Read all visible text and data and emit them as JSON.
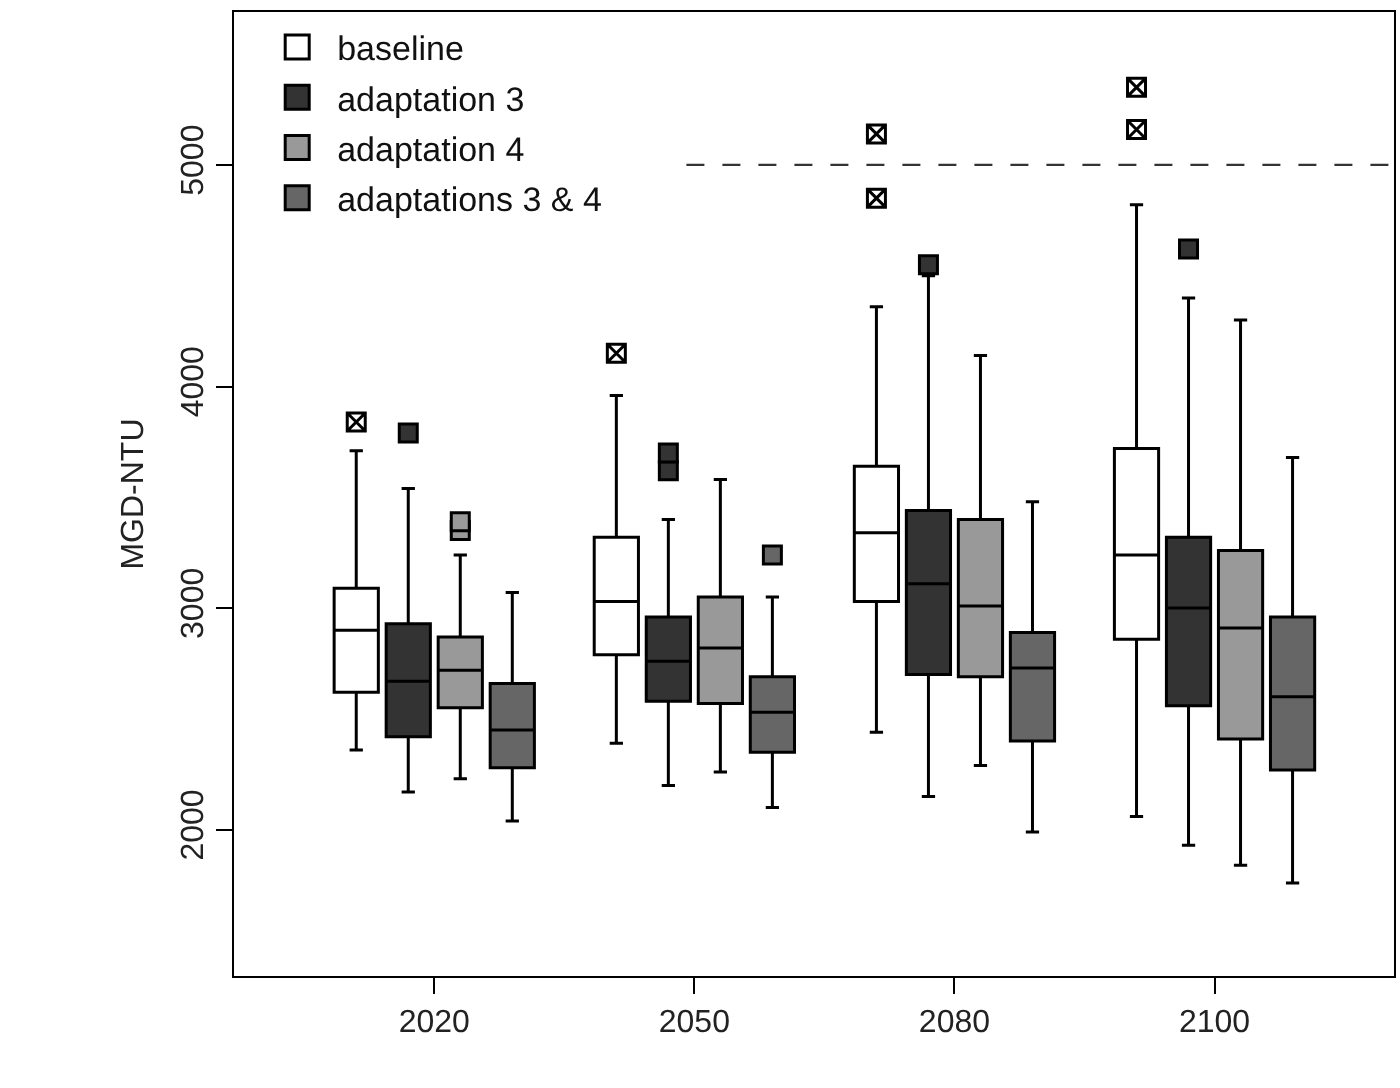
{
  "chart_data": {
    "type": "box",
    "ylabel": "MGD-NTU",
    "categories": [
      "2020",
      "2050",
      "2080",
      "2100"
    ],
    "ylim": [
      1340,
      5690
    ],
    "yticks": [
      2000,
      3000,
      4000,
      5000
    ],
    "grid": false,
    "legend": "top left",
    "ref_lines": [
      {
        "axis": "y",
        "value": 5000,
        "line_style": "dashed",
        "color": "#333333"
      }
    ],
    "series": [
      {
        "name": "baseline",
        "color": "#ffffff",
        "boxes": [
          {
            "low": 2360,
            "q1": 2620,
            "median": 2900,
            "q3": 3090,
            "high": 3710,
            "outliers": [
              3840
            ]
          },
          {
            "low": 2390,
            "q1": 2790,
            "median": 3030,
            "q3": 3320,
            "high": 3960,
            "outliers": [
              4150
            ]
          },
          {
            "low": 2440,
            "q1": 3030,
            "median": 3340,
            "q3": 3640,
            "high": 4360,
            "outliers": [
              4850,
              5140
            ]
          },
          {
            "low": 2060,
            "q1": 2860,
            "median": 3240,
            "q3": 3720,
            "high": 4820,
            "outliers": [
              5160,
              5350
            ]
          }
        ]
      },
      {
        "name": "adaptation 3",
        "color": "#333333",
        "boxes": [
          {
            "low": 2170,
            "q1": 2420,
            "median": 2670,
            "q3": 2930,
            "high": 3540,
            "outliers": [
              3790
            ]
          },
          {
            "low": 2200,
            "q1": 2580,
            "median": 2760,
            "q3": 2960,
            "high": 3400,
            "outliers": [
              3620,
              3700
            ]
          },
          {
            "low": 2150,
            "q1": 2700,
            "median": 3110,
            "q3": 3440,
            "high": 4500,
            "outliers": [
              4550
            ]
          },
          {
            "low": 1930,
            "q1": 2560,
            "median": 3000,
            "q3": 3320,
            "high": 4400,
            "outliers": [
              4620
            ]
          }
        ]
      },
      {
        "name": "adaptation 4",
        "color": "#999999",
        "boxes": [
          {
            "low": 2230,
            "q1": 2550,
            "median": 2720,
            "q3": 2870,
            "high": 3240,
            "outliers": [
              3350,
              3390
            ]
          },
          {
            "low": 2260,
            "q1": 2570,
            "median": 2820,
            "q3": 3050,
            "high": 3580
          },
          {
            "low": 2290,
            "q1": 2690,
            "median": 3010,
            "q3": 3400,
            "high": 4140
          },
          {
            "low": 1840,
            "q1": 2410,
            "median": 2910,
            "q3": 3260,
            "high": 4300
          }
        ]
      },
      {
        "name": "adaptations 3 & 4",
        "color": "#666666",
        "boxes": [
          {
            "low": 2040,
            "q1": 2280,
            "median": 2450,
            "q3": 2660,
            "high": 3070
          },
          {
            "low": 2100,
            "q1": 2350,
            "median": 2530,
            "q3": 2690,
            "high": 3050,
            "outliers": [
              3240
            ]
          },
          {
            "low": 1990,
            "q1": 2400,
            "median": 2730,
            "q3": 2890,
            "high": 3480
          },
          {
            "low": 1760,
            "q1": 2270,
            "median": 2600,
            "q3": 2960,
            "high": 3680
          }
        ]
      }
    ]
  }
}
